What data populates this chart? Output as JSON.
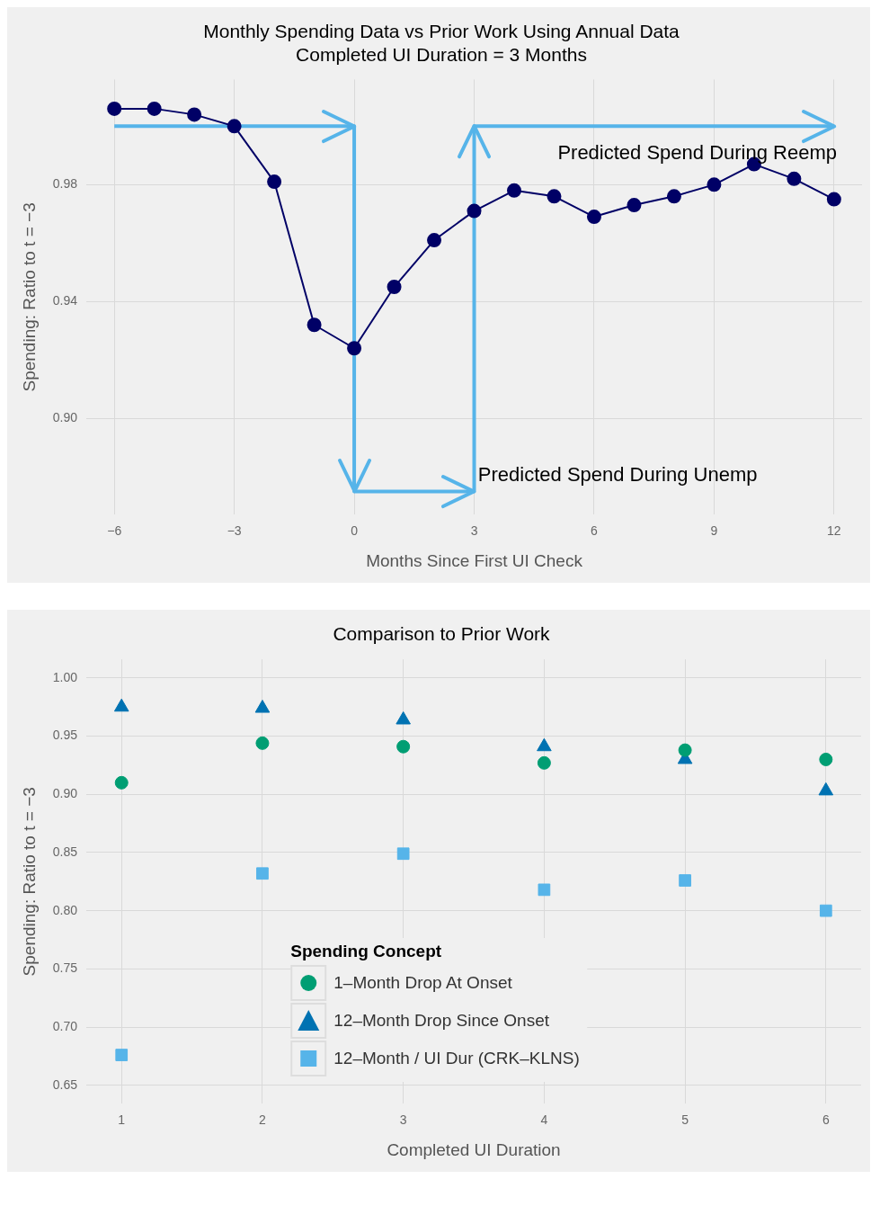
{
  "chart_data": [
    {
      "type": "line",
      "title": "Monthly Spending Data vs Prior Work Using Annual Data",
      "subtitle": "Completed UI Duration = 3 Months",
      "xlabel": "Months Since First UI Check",
      "ylabel": "Spending: Ratio to t = −3",
      "xlim": [
        -6.7,
        12.7
      ],
      "xticks": [
        {
          "value": -6,
          "label": "−6"
        },
        {
          "value": -3,
          "label": "−3"
        },
        0,
        3,
        6,
        9,
        12
      ],
      "ylim": [
        0.867,
        1.016
      ],
      "yticks": [
        {
          "value": 0.9,
          "label": "0.90"
        },
        0.94,
        0.98
      ],
      "grid": true,
      "legend": false,
      "series": [
        {
          "color": "#000066",
          "marker": "circle",
          "x": [
            -6,
            -5,
            -4,
            -3,
            -2,
            -1,
            0,
            1,
            2,
            3,
            4,
            5,
            6,
            7,
            8,
            9,
            10,
            11,
            12
          ],
          "values": [
            1.006,
            1.006,
            1.004,
            1.0,
            0.981,
            0.932,
            0.924,
            0.945,
            0.961,
            0.971,
            0.978,
            0.976,
            0.969,
            0.973,
            0.976,
            0.98,
            0.987,
            0.982,
            0.975
          ]
        },
        {
          "type": "line",
          "color": "#56b4e9",
          "marker": "none",
          "x": [
            -6,
            0,
            0,
            3,
            3,
            12
          ],
          "values": [
            1.0,
            1.0,
            0.875,
            0.875,
            1.0,
            1.0
          ]
        }
      ],
      "annotations": [
        "Predicted Spend During Reemp",
        "Predicted Spend During Unemp"
      ]
    },
    {
      "type": "scatter",
      "title": "Comparison to Prior Work",
      "xlabel": "Completed UI Duration",
      "ylabel": "Spending: Ratio to t = −3",
      "xlim": [
        0.75,
        6.25
      ],
      "xticks": [
        1,
        2,
        3,
        4,
        5,
        6
      ],
      "ylim": [
        0.634,
        1.016
      ],
      "yticks": [
        0.65,
        {
          "value": 0.7,
          "label": "0.70"
        },
        0.75,
        {
          "value": 0.8,
          "label": "0.80"
        },
        0.85,
        {
          "value": 0.9,
          "label": "0.90"
        },
        0.95,
        {
          "value": 1,
          "label": "1.00"
        }
      ],
      "grid": true,
      "legend": "bottom",
      "legend_title": "Spending Concept",
      "series": [
        {
          "name": "1–Month Drop At Onset",
          "color": "#009e73",
          "marker": "circle",
          "x": [
            1,
            2,
            3,
            4,
            5,
            6
          ],
          "values": [
            0.91,
            0.944,
            0.941,
            0.927,
            0.938,
            0.93
          ]
        },
        {
          "name": "12–Month Drop Since Onset",
          "color": "#0072b2",
          "marker": "triangle",
          "x": [
            1,
            2,
            3,
            4,
            5,
            6
          ],
          "values": [
            0.975,
            0.974,
            0.964,
            0.941,
            0.93,
            0.903
          ]
        },
        {
          "name": "12–Month / UI Dur (CRK–KLNS)",
          "color": "#56b4e9",
          "marker": "square",
          "x": [
            1,
            2,
            3,
            4,
            5,
            6
          ],
          "values": [
            0.676,
            0.832,
            0.849,
            0.818,
            0.826,
            0.8
          ]
        }
      ]
    }
  ]
}
